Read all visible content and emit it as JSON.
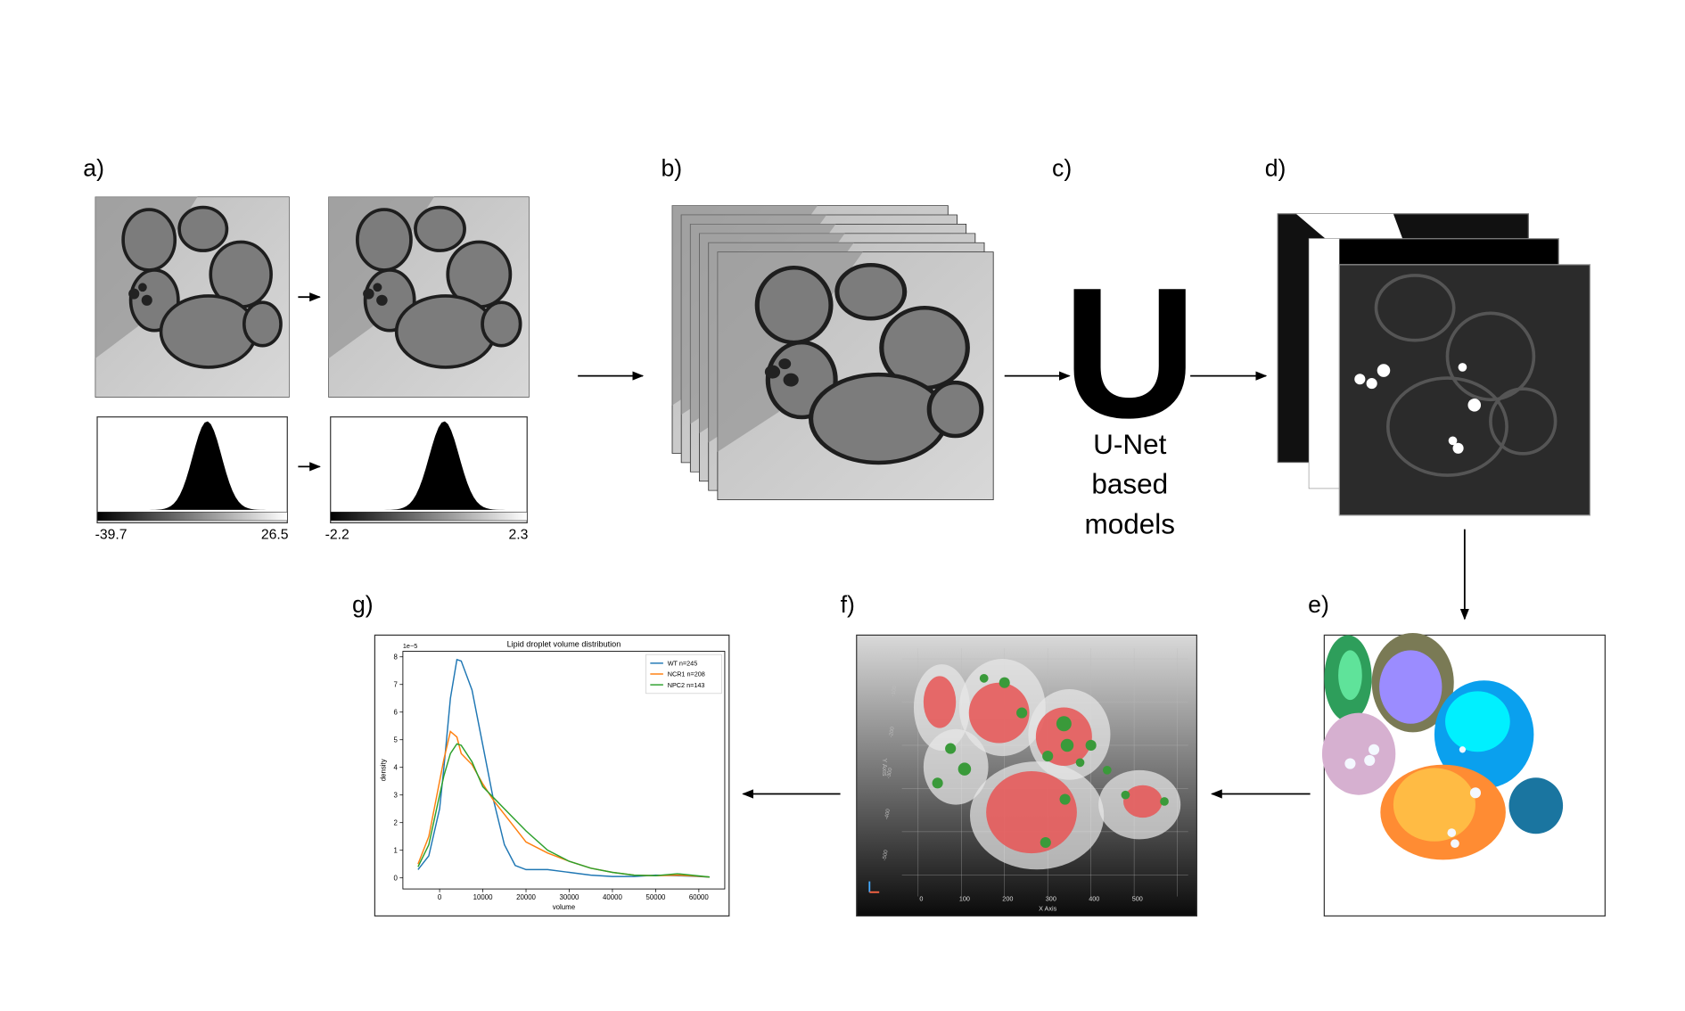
{
  "panels": {
    "a": {
      "label": "a)",
      "histograms": [
        {
          "min": "-39.7",
          "max": "26.5"
        },
        {
          "min": "-2.2",
          "max": "2.3"
        }
      ]
    },
    "b": {
      "label": "b)"
    },
    "c": {
      "label": "c)",
      "symbol": "U",
      "caption": [
        "U-Net",
        "based",
        "models"
      ]
    },
    "d": {
      "label": "d)"
    },
    "e": {
      "label": "e)"
    },
    "f": {
      "label": "f)",
      "x_axis_label": "X Axis",
      "y_axis_label": "Y Axis",
      "x_ticks": [
        "0",
        "100",
        "200",
        "300",
        "400",
        "500"
      ],
      "y_ticks": [
        "-100",
        "-200",
        "-300",
        "-400",
        "-500"
      ]
    },
    "g": {
      "label": "g)"
    }
  },
  "chart_data": {
    "type": "line",
    "title": "Lipid droplet volume distribution",
    "x_label": "volume",
    "y_label": "density",
    "y_offset_label": "1e−5",
    "x": [
      -5000,
      -2500,
      0,
      1000,
      2500,
      4000,
      5000,
      7500,
      10000,
      12500,
      15000,
      17500,
      20000,
      25000,
      30000,
      35000,
      40000,
      45000,
      50000,
      55000,
      60000,
      62500
    ],
    "series": [
      {
        "name": "WT n=245",
        "color": "#1f77b4",
        "values": [
          0.3,
          0.8,
          2.5,
          4.0,
          6.5,
          7.9,
          7.85,
          6.8,
          4.8,
          2.8,
          1.2,
          0.45,
          0.3,
          0.3,
          0.2,
          0.1,
          0.05,
          0.05,
          0.1,
          0.08,
          0.05,
          0.03
        ]
      },
      {
        "name": "NCR1 n=208",
        "color": "#ff7f0e",
        "values": [
          0.5,
          1.5,
          3.5,
          4.3,
          5.3,
          5.1,
          4.5,
          4.1,
          3.4,
          2.8,
          2.3,
          1.8,
          1.3,
          0.9,
          0.6,
          0.35,
          0.2,
          0.1,
          0.08,
          0.1,
          0.06,
          0.03
        ]
      },
      {
        "name": "NPC2 n=143",
        "color": "#2ca02c",
        "values": [
          0.4,
          1.2,
          3.0,
          3.7,
          4.5,
          4.85,
          4.8,
          4.2,
          3.3,
          2.9,
          2.5,
          2.1,
          1.7,
          1.0,
          0.6,
          0.35,
          0.2,
          0.1,
          0.08,
          0.15,
          0.07,
          0.03
        ]
      }
    ],
    "xlim": [
      -8500,
      66000
    ],
    "ylim": [
      -0.4,
      8.2
    ],
    "xticks": [
      0,
      10000,
      20000,
      30000,
      40000,
      50000,
      60000
    ],
    "yticks": [
      0,
      1,
      2,
      3,
      4,
      5,
      6,
      7,
      8
    ],
    "legend": "upper right",
    "grid": false
  }
}
